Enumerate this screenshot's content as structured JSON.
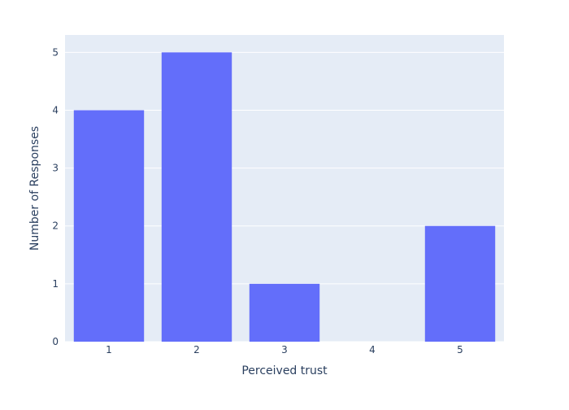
{
  "chart_data": {
    "type": "bar",
    "categories": [
      1,
      2,
      3,
      4,
      5
    ],
    "values": [
      4,
      5,
      1,
      0,
      2
    ],
    "xlabel": "Perceived trust",
    "ylabel": "Number of Responses",
    "ylim": [
      0,
      5.3
    ],
    "yticks": [
      0,
      1,
      2,
      3,
      4,
      5
    ],
    "xticks": [
      "1",
      "2",
      "3",
      "4",
      "5"
    ],
    "grid": true,
    "colors": {
      "bar": "#636efa",
      "plot_background": "#e5ecf6",
      "gridline": "#ffffff",
      "text": "#2a3f5f"
    }
  }
}
